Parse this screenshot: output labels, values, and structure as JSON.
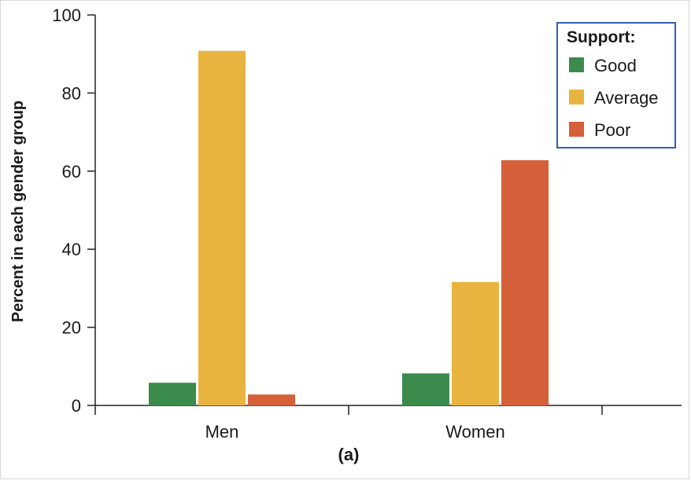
{
  "chart_data": {
    "type": "bar",
    "categories": [
      "Men",
      "Women"
    ],
    "series": [
      {
        "name": "Good",
        "values": [
          5.8,
          8.2
        ],
        "color": "#3a8b4c"
      },
      {
        "name": "Average",
        "values": [
          90.8,
          31.6
        ],
        "color": "#e9b33f"
      },
      {
        "name": "Poor",
        "values": [
          2.8,
          62.8
        ],
        "color": "#d6603a"
      }
    ],
    "ylabel": "Percent in each gender group",
    "xlabel": "",
    "ylim": [
      0,
      100
    ],
    "yticks": [
      "0",
      "20",
      "40",
      "60",
      "80",
      "100"
    ],
    "legend": {
      "title": "Support:",
      "placement": "top-right",
      "border_color": "#2f5fb0"
    },
    "caption": "(a)",
    "grid": false
  }
}
